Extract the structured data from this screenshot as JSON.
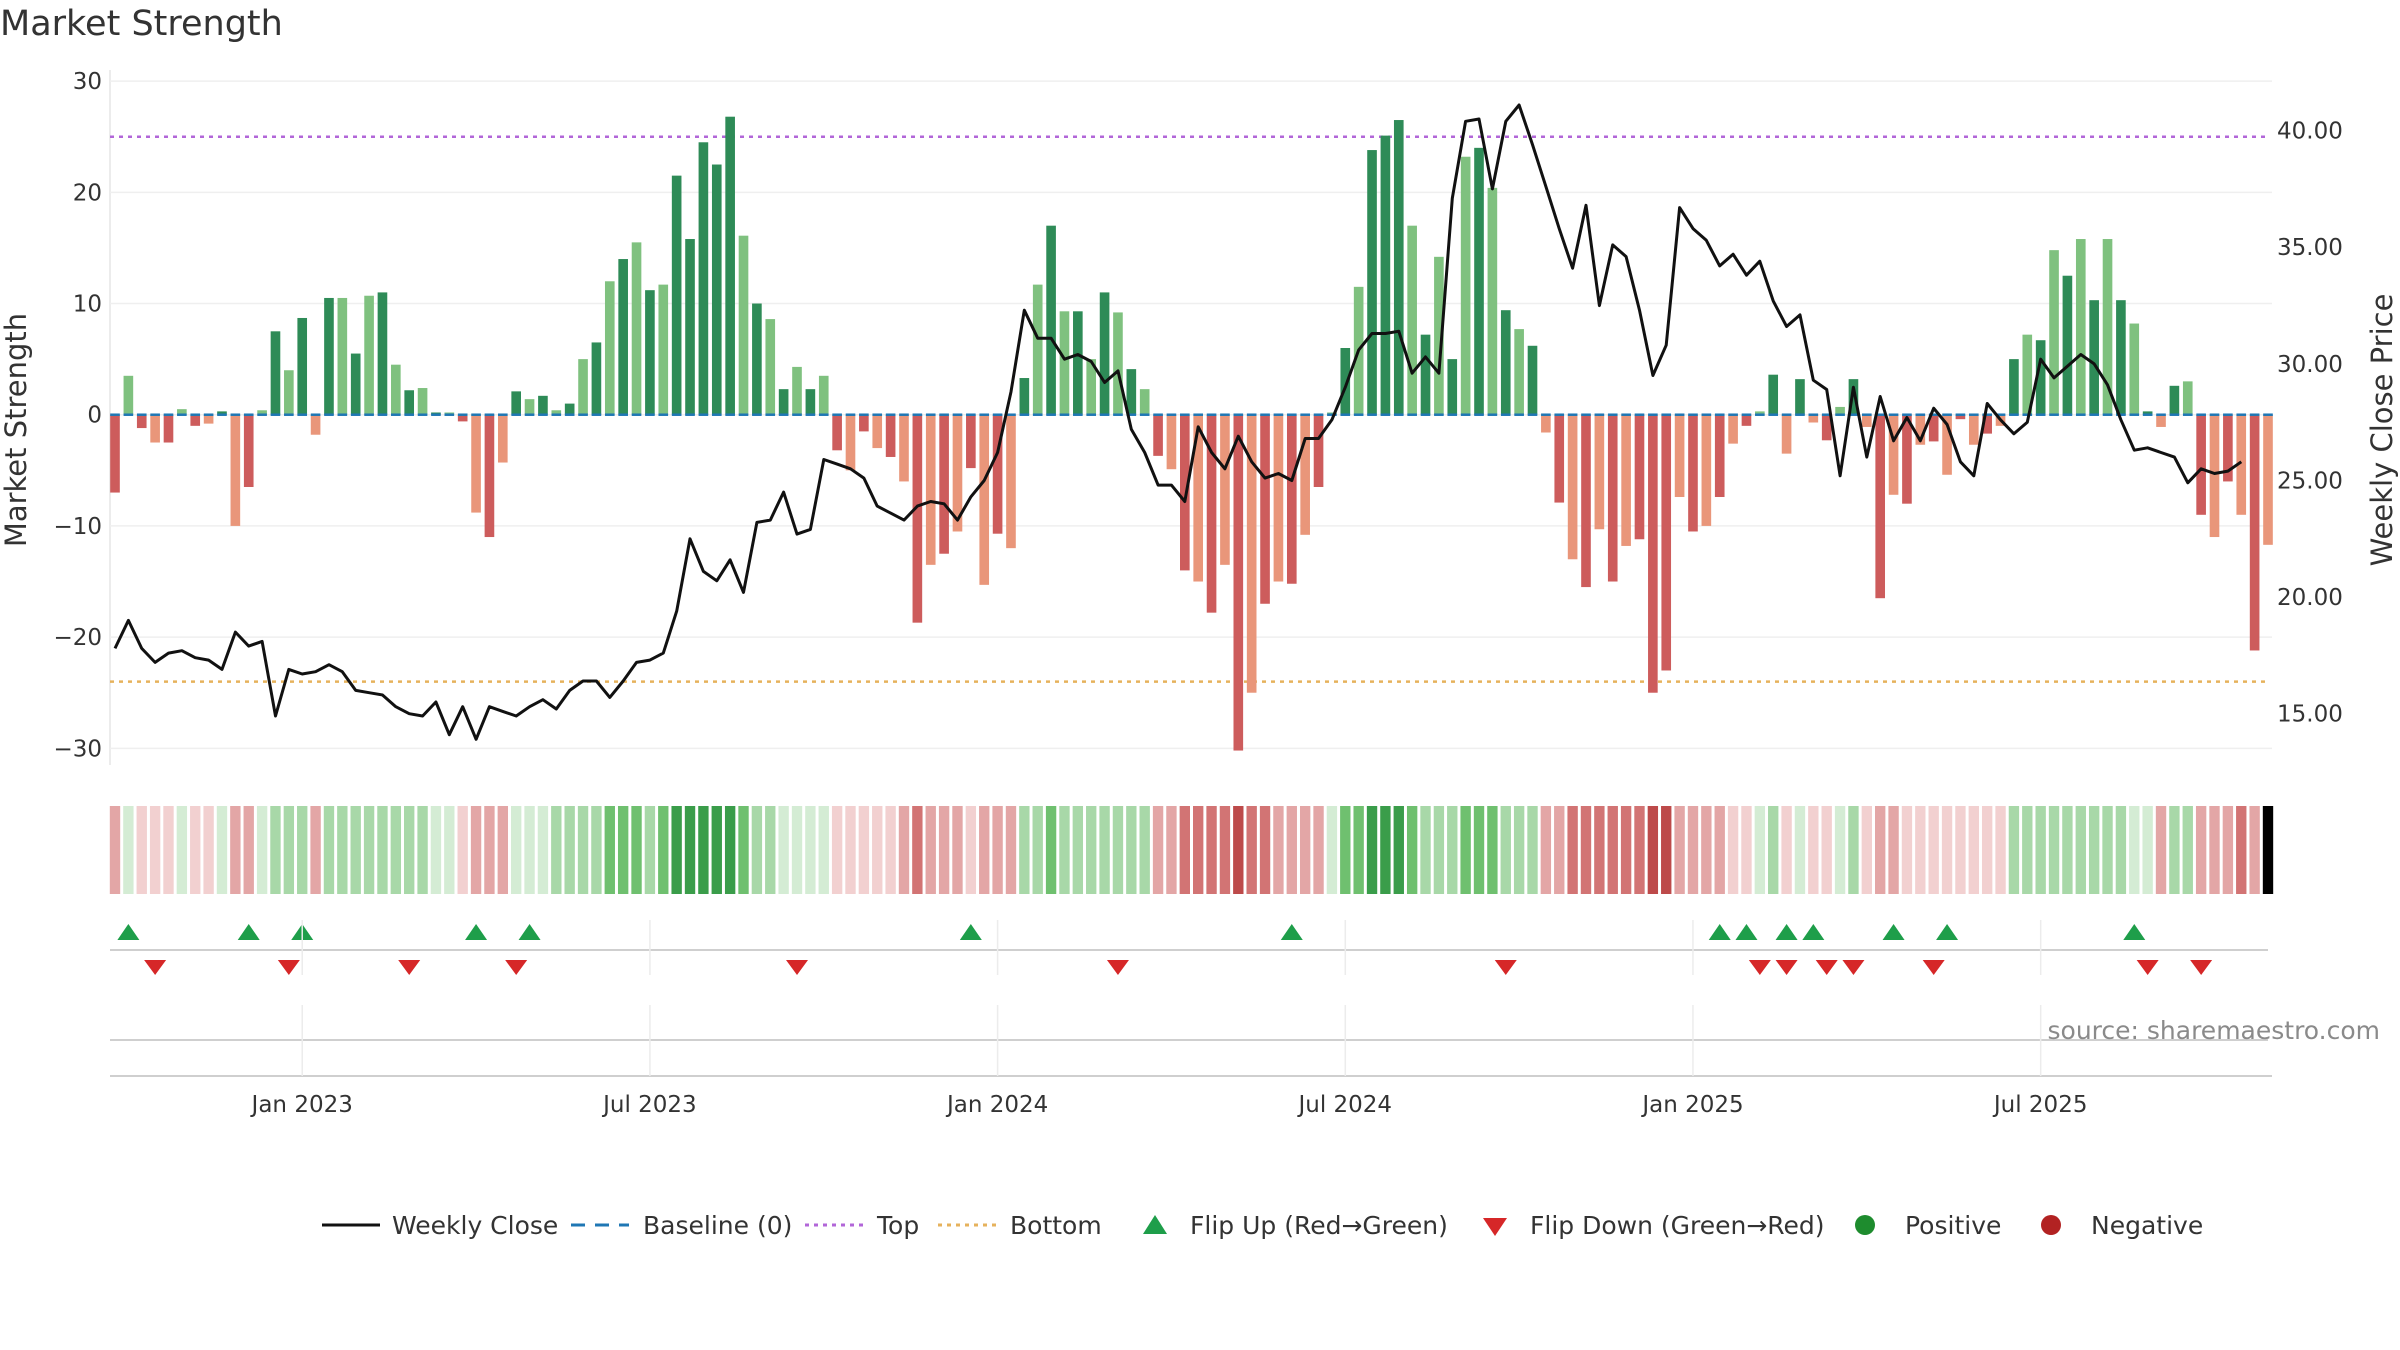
{
  "title": "Market Strength",
  "source": "source: sharemaestro.com",
  "colors": {
    "dark_green": "#2e8b57",
    "light_green": "#7fc17f",
    "dark_red": "#cd5c5c",
    "light_red": "#e9967a",
    "close_line": "#111111",
    "baseline": "#1f77b4",
    "top_line": "#b266d8",
    "bottom_line": "#e6b25c",
    "flip_up": "#1e9e4a",
    "flip_down": "#d62728",
    "positive": "#1e8c2e",
    "negative": "#b22222"
  },
  "chart_data": {
    "type": "bar",
    "left_axis": {
      "label": "Market Strength",
      "ticks": [
        "30",
        "20",
        "10",
        "0",
        "−10",
        "−20",
        "−30"
      ],
      "range": [
        -31.5,
        31
      ]
    },
    "right_axis": {
      "label": "Weekly Close Price",
      "ticks": [
        "40.00",
        "35.00",
        "30.00",
        "25.00",
        "20.00",
        "15.00"
      ],
      "range": [
        12.8,
        42.6
      ]
    },
    "x_ticks": [
      "Jan 2023",
      "Jul 2023",
      "Jan 2024",
      "Jul 2024",
      "Jan 2025",
      "Jul 2025"
    ],
    "x_tick_weeks": [
      14,
      40,
      66,
      92,
      118,
      144
    ],
    "top_level": 25,
    "bottom_level": -24,
    "strength": [
      -7,
      3.5,
      -1.2,
      -2.5,
      -2.5,
      0.5,
      -1,
      -0.8,
      0.3,
      -10,
      -6.5,
      0.4,
      7.5,
      4,
      8.7,
      -1.8,
      10.5,
      10.5,
      5.5,
      10.7,
      11,
      4.5,
      2.2,
      2.4,
      0.2,
      0.2,
      -0.6,
      -8.8,
      -11,
      -4.3,
      2.1,
      1.4,
      1.7,
      0.4,
      1,
      5,
      6.5,
      12,
      14,
      15.5,
      11.2,
      11.7,
      21.5,
      15.8,
      24.5,
      22.5,
      26.8,
      16.1,
      10,
      8.6,
      2.3,
      4.3,
      2.3,
      3.5,
      -3.2,
      -5,
      -1.5,
      -3,
      -3.8,
      -6,
      -18.7,
      -13.5,
      -12.5,
      -10.5,
      -4.8,
      -15.3,
      -10.7,
      -12,
      3.3,
      11.7,
      17,
      9.3,
      9.3,
      5,
      11,
      9.2,
      4.1,
      2.3,
      -3.7,
      -4.9,
      -14,
      -15,
      -17.8,
      -13.5,
      -30.2,
      -25,
      -17,
      -15,
      -15.2,
      -10.8,
      -6.5,
      0.2,
      6,
      11.5,
      23.8,
      25.1,
      26.5,
      17,
      7.2,
      14.2,
      5,
      23.2,
      24,
      20.4,
      9.4,
      7.7,
      6.2,
      -1.6,
      -7.9,
      -13,
      -15.5,
      -10.3,
      -15,
      -11.8,
      -11.2,
      -25,
      -23,
      -7.4,
      -10.5,
      -10,
      -7.4,
      -2.6,
      -1,
      0.3,
      3.6,
      -3.5,
      3.2,
      -0.7,
      -2.3,
      0.7,
      3.2,
      -1.1,
      -16.5,
      -7.2,
      -8,
      -2.7,
      -2.4,
      -5.4,
      -0.4,
      -2.7,
      -1.7,
      -1,
      5,
      7.2,
      6.7,
      14.8,
      12.5,
      15.8,
      10.3,
      15.8,
      10.3,
      8.2,
      0.3,
      -1.1,
      2.6,
      3,
      -9,
      -11,
      -6,
      -9,
      -21.2,
      -11.7
    ],
    "weekly_close": [
      17.8,
      19,
      17.8,
      17.2,
      17.6,
      17.7,
      17.4,
      17.3,
      16.9,
      18.5,
      17.9,
      18.1,
      14.9,
      16.9,
      16.7,
      16.8,
      17.1,
      16.8,
      16,
      15.9,
      15.8,
      15.3,
      15,
      14.9,
      15.5,
      14.1,
      15.3,
      13.9,
      15.3,
      15.1,
      14.9,
      15.3,
      15.6,
      15.2,
      16,
      16.4,
      16.4,
      15.7,
      16.4,
      17.2,
      17.3,
      17.6,
      19.4,
      22.5,
      21.1,
      20.7,
      21.6,
      20.2,
      23.2,
      23.3,
      24.5,
      22.7,
      22.9,
      25.9,
      25.7,
      25.5,
      25.1,
      23.9,
      23.6,
      23.3,
      23.9,
      24.1,
      24,
      23.3,
      24.3,
      25,
      26.2,
      28.8,
      32.3,
      31.1,
      31.1,
      30.2,
      30.4,
      30.1,
      29.2,
      29.7,
      27.2,
      26.2,
      24.8,
      24.8,
      24.1,
      27.3,
      26.2,
      25.5,
      26.9,
      25.8,
      25.1,
      25.3,
      25,
      26.8,
      26.8,
      27.6,
      29,
      30.6,
      31.3,
      31.3,
      31.4,
      29.6,
      30.3,
      29.6,
      37.1,
      40.4,
      40.5,
      37.5,
      40.4,
      41.1,
      39.4,
      37.6,
      35.8,
      34.1,
      36.8,
      32.5,
      35.1,
      34.6,
      32.3,
      29.5,
      30.8,
      36.7,
      35.8,
      35.3,
      34.2,
      34.7,
      33.8,
      34.4,
      32.7,
      31.6,
      32.1,
      29.3,
      28.9,
      25.2,
      29,
      26,
      28.6,
      26.7,
      27.7,
      26.7,
      28.1,
      27.4,
      25.8,
      25.2,
      28.3,
      27.6,
      27,
      27.5,
      30.2,
      29.4,
      29.9,
      30.4,
      30,
      29.1,
      27.6,
      26.3,
      26.4,
      26.2,
      26,
      24.9,
      25.5,
      25.3,
      25.4,
      25.8
    ],
    "intensity": [
      2,
      1,
      1,
      1,
      1,
      1,
      1,
      1,
      1,
      2,
      2,
      1,
      2,
      2,
      2,
      2,
      2,
      2,
      2,
      2,
      2,
      2,
      2,
      2,
      1,
      1,
      1,
      2,
      2,
      2,
      1,
      1,
      1,
      2,
      2,
      2,
      2,
      3,
      3,
      3,
      2,
      3,
      4,
      4,
      4,
      4,
      4,
      3,
      2,
      2,
      1,
      1,
      1,
      1,
      1,
      1,
      1,
      1,
      1,
      2,
      3,
      2,
      2,
      2,
      1,
      2,
      2,
      2,
      2,
      2,
      3,
      2,
      2,
      2,
      2,
      2,
      2,
      2,
      2,
      2,
      3,
      3,
      3,
      3,
      4,
      3,
      3,
      2,
      2,
      2,
      2,
      1,
      3,
      3,
      4,
      4,
      4,
      3,
      2,
      2,
      2,
      3,
      3,
      3,
      2,
      2,
      2,
      2,
      2,
      3,
      3,
      3,
      3,
      3,
      3,
      4,
      4,
      2,
      2,
      2,
      2,
      1,
      1,
      1,
      2,
      1,
      1,
      1,
      1,
      1,
      2,
      1,
      2,
      2,
      1,
      1,
      1,
      1,
      1,
      1,
      1,
      1,
      2,
      2,
      2,
      2,
      2,
      2,
      2,
      2,
      2,
      1,
      1,
      2,
      2,
      2,
      2,
      2,
      2,
      3,
      2
    ],
    "flip_up_weeks": [
      1,
      10,
      14,
      27,
      31,
      64,
      88,
      120,
      122,
      125,
      127,
      133,
      137,
      151
    ],
    "flip_down_weeks": [
      3,
      13,
      22,
      30,
      51,
      75,
      104,
      123,
      125,
      128,
      130,
      136,
      152,
      156
    ],
    "legend": [
      {
        "label": "Weekly Close",
        "kind": "line"
      },
      {
        "label": "Baseline (0)",
        "kind": "dash"
      },
      {
        "label": "Top",
        "kind": "dot-purple"
      },
      {
        "label": "Bottom",
        "kind": "dot-orange"
      },
      {
        "label": "Flip Up (Red→Green)",
        "kind": "tri-up"
      },
      {
        "label": "Flip Down (Green→Red)",
        "kind": "tri-down"
      },
      {
        "label": "Positive",
        "kind": "circle-green"
      },
      {
        "label": "Negative",
        "kind": "circle-red"
      }
    ]
  }
}
